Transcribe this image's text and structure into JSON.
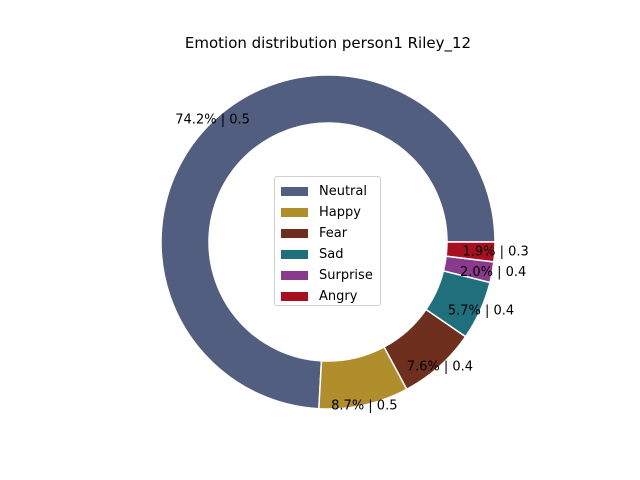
{
  "chart_data": {
    "type": "pie",
    "style": "donut",
    "title": "Emotion distribution person1 Riley_12",
    "legend_position": "center",
    "slices": [
      {
        "label": "Neutral",
        "percent": 74.2,
        "score": 0.5,
        "color": "#525e7f",
        "label_text": "74.2% | 0.5"
      },
      {
        "label": "Happy",
        "percent": 8.7,
        "score": 0.5,
        "color": "#b08e2c",
        "label_text": "8.7% | 0.5"
      },
      {
        "label": "Fear",
        "percent": 7.6,
        "score": 0.4,
        "color": "#6e2f1f",
        "label_text": "7.6% | 0.4"
      },
      {
        "label": "Sad",
        "percent": 5.7,
        "score": 0.4,
        "color": "#1f6f7d",
        "label_text": "5.7% | 0.4"
      },
      {
        "label": "Surprise",
        "percent": 2.0,
        "score": 0.4,
        "color": "#8a3a8c",
        "label_text": "2.0% | 0.4"
      },
      {
        "label": "Angry",
        "percent": 1.9,
        "score": 0.3,
        "color": "#a8101f",
        "label_text": "1.9% | 0.3"
      }
    ]
  }
}
